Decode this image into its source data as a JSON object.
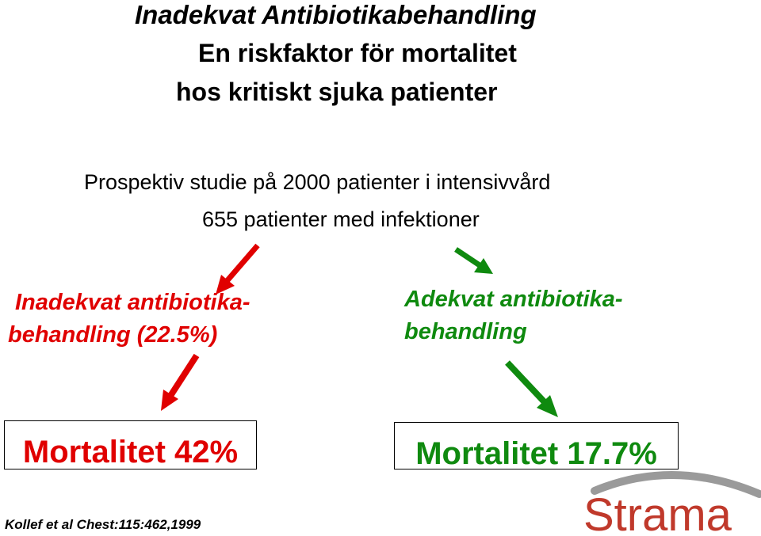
{
  "heading": {
    "title": "Inadekvat Antibiotikabehandling",
    "subtitle_line1": "En riskfaktor för mortalitet",
    "subtitle_line2": "hos kritiskt sjuka patienter"
  },
  "study": {
    "line1": "Prospektiv studie på 2000 patienter i intensivvård",
    "line2": "655 patienter med infektioner"
  },
  "branches": {
    "inadequate": {
      "line1": "Inadekvat antibiotika-",
      "line2": "behandling (22.5%)",
      "outcome": "Mortalitet 42%",
      "color": "#e00000"
    },
    "adequate": {
      "line1": "Adekvat antibiotika-",
      "line2": "behandling",
      "outcome": "Mortalitet 17.7%",
      "color": "#0f8a0f"
    }
  },
  "citation": "Kollef et al Chest:115:462,1999",
  "logo": {
    "text": "Strama",
    "color": "#c0392b",
    "arc_color": "#9a9a9a"
  }
}
